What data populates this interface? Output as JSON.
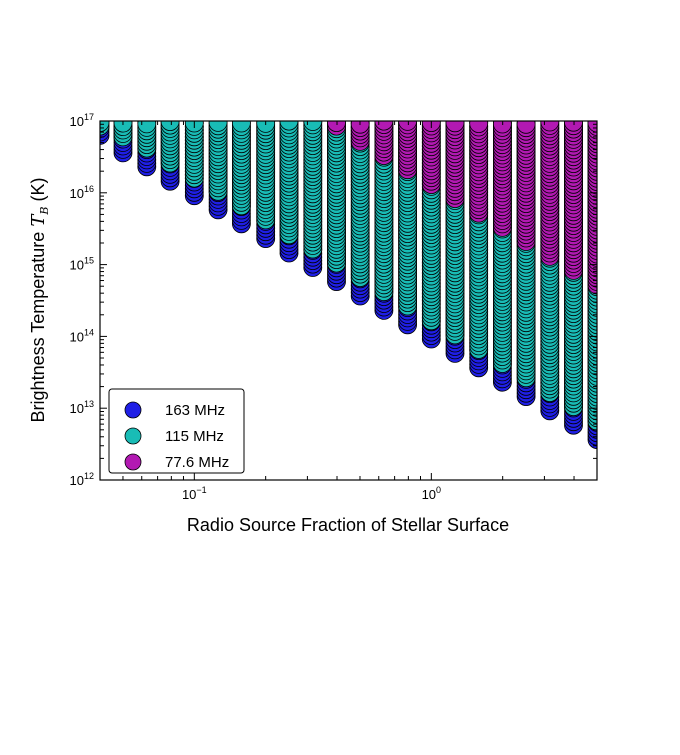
{
  "chart_data": {
    "type": "scatter",
    "title": "",
    "xlabel": "Radio Source Fraction of Stellar Surface",
    "ylabel": "Brightness Temperature",
    "ylabel_symbol": "T",
    "ylabel_subscript": "B",
    "ylabel_unit": "(K)",
    "x_scale": "log",
    "y_scale": "log",
    "xlim": [
      0.04,
      5.0
    ],
    "ylim": [
      1000000000000.0,
      1e+17
    ],
    "x_ticks": [
      {
        "base": "10",
        "exp": "−1",
        "value": 0.1
      },
      {
        "base": "10",
        "exp": "0",
        "value": 1
      }
    ],
    "y_ticks": [
      {
        "base": "10",
        "exp": "12",
        "value": 1000000000000.0
      },
      {
        "base": "10",
        "exp": "13",
        "value": 10000000000000.0
      },
      {
        "base": "10",
        "exp": "14",
        "value": 100000000000000.0
      },
      {
        "base": "10",
        "exp": "15",
        "value": 1000000000000000.0
      },
      {
        "base": "10",
        "exp": "16",
        "value": 1e+16
      },
      {
        "base": "10",
        "exp": "17",
        "value": 1e+17
      }
    ],
    "grid": false,
    "legend_position": "lower-left",
    "x_columns": [
      0.04,
      0.05,
      0.063,
      0.079,
      0.1,
      0.126,
      0.158,
      0.2,
      0.251,
      0.316,
      0.398,
      0.501,
      0.631,
      0.794,
      1.0,
      1.259,
      1.585,
      1.995,
      2.512,
      3.162,
      3.981,
      5.0
    ],
    "series": [
      {
        "name": "163 MHz",
        "color": "#1f1fe6",
        "min_tb": [
          6.3e+16,
          3.6e+16,
          2.3e+16,
          1.45e+16,
          9100000000000000.0,
          5800000000000000.0,
          3700000000000000.0,
          2300000000000000.0,
          1450000000000000.0,
          910000000000000.0,
          580000000000000.0,
          365000000000000.0,
          230000000000000.0,
          145000000000000.0,
          92000000000000.0,
          58000000000000.0,
          36500000000000.0,
          23000000000000.0,
          14500000000000.0,
          9200000000000.0,
          5800000000000.0,
          3650000000000.0
        ]
      },
      {
        "name": "115 MHz",
        "color": "#19bcb6",
        "min_tb": [
          8.5e+16,
          6e+16,
          4.2e+16,
          2.6e+16,
          1.6e+16,
          1.05e+16,
          6600000000000000.0,
          4200000000000000.0,
          2600000000000000.0,
          1650000000000000.0,
          1050000000000000.0,
          660000000000000.0,
          420000000000000.0,
          265000000000000.0,
          165000000000000.0,
          105000000000000.0,
          66000000000000.0,
          42000000000000.0,
          26500000000000.0,
          16500000000000.0,
          10500000000000.0,
          6600000000000.0
        ]
      },
      {
        "name": "77.6 MHz",
        "color": "#b219b2",
        "min_tb": [
          null,
          null,
          null,
          null,
          null,
          null,
          null,
          null,
          null,
          null,
          8.5e+16,
          5.2e+16,
          3.3e+16,
          2.1e+16,
          1.3e+16,
          8300000000000000.0,
          5200000000000000.0,
          3300000000000000.0,
          2100000000000000.0,
          1300000000000000.0,
          830000000000000.0,
          520000000000000.0
        ]
      }
    ],
    "max_tb": 1e+17
  }
}
